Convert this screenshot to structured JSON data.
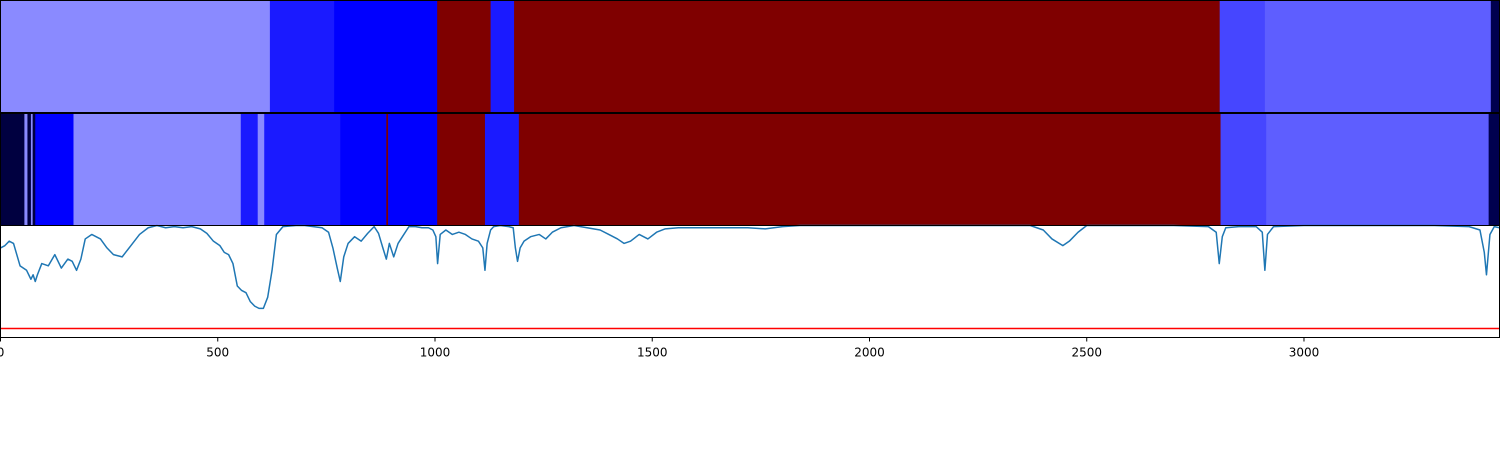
{
  "chart_data": [
    {
      "type": "heatmap",
      "name": "segmentation-a",
      "xlim": [
        0,
        3450
      ],
      "segments": [
        {
          "start": 0,
          "end": 620,
          "color": "#8a8aff"
        },
        {
          "start": 620,
          "end": 768,
          "color": "#1a1aff"
        },
        {
          "start": 768,
          "end": 1005,
          "color": "#0000ff"
        },
        {
          "start": 1005,
          "end": 1128,
          "color": "#7f0000"
        },
        {
          "start": 1128,
          "end": 1182,
          "color": "#1a1aff"
        },
        {
          "start": 1182,
          "end": 2806,
          "color": "#7f0000"
        },
        {
          "start": 2806,
          "end": 2910,
          "color": "#4646ff"
        },
        {
          "start": 2910,
          "end": 3430,
          "color": "#5e5eff"
        },
        {
          "start": 3430,
          "end": 3450,
          "color": "#00004f"
        }
      ]
    },
    {
      "type": "heatmap",
      "name": "segmentation-b",
      "xlim": [
        0,
        3450
      ],
      "segments": [
        {
          "start": 0,
          "end": 55,
          "color": "#000040"
        },
        {
          "start": 55,
          "end": 62,
          "color": "#8a8aff"
        },
        {
          "start": 62,
          "end": 70,
          "color": "#000040"
        },
        {
          "start": 70,
          "end": 74,
          "color": "#8a8aff"
        },
        {
          "start": 74,
          "end": 80,
          "color": "#000040"
        },
        {
          "start": 80,
          "end": 168,
          "color": "#0000ff"
        },
        {
          "start": 168,
          "end": 553,
          "color": "#8a8aff"
        },
        {
          "start": 553,
          "end": 592,
          "color": "#1a1aff"
        },
        {
          "start": 592,
          "end": 607,
          "color": "#8a8aff"
        },
        {
          "start": 607,
          "end": 782,
          "color": "#1a1aff"
        },
        {
          "start": 782,
          "end": 888,
          "color": "#0000ff"
        },
        {
          "start": 888,
          "end": 892,
          "color": "#7f0000"
        },
        {
          "start": 892,
          "end": 1005,
          "color": "#0000ff"
        },
        {
          "start": 1005,
          "end": 1115,
          "color": "#7f0000"
        },
        {
          "start": 1115,
          "end": 1193,
          "color": "#1a1aff"
        },
        {
          "start": 1193,
          "end": 2808,
          "color": "#7f0000"
        },
        {
          "start": 2808,
          "end": 2913,
          "color": "#4646ff"
        },
        {
          "start": 2913,
          "end": 3425,
          "color": "#5e5eff"
        },
        {
          "start": 3425,
          "end": 3450,
          "color": "#00004f"
        }
      ]
    },
    {
      "type": "line",
      "xlim": [
        0,
        3450
      ],
      "ylim": [
        0,
        1
      ],
      "x_ticks": [
        0,
        500,
        1000,
        1500,
        2000,
        2500,
        3000
      ],
      "x_tick_labels": [
        "0",
        "500",
        "1000",
        "1500",
        "2000",
        "2500",
        "3000"
      ],
      "threshold": {
        "value": 0.08,
        "color": "#ff0000"
      },
      "series": [
        {
          "color": "#1f77b4",
          "points": [
            [
              0,
              0.8
            ],
            [
              10,
              0.82
            ],
            [
              20,
              0.86
            ],
            [
              30,
              0.84
            ],
            [
              45,
              0.64
            ],
            [
              60,
              0.6
            ],
            [
              70,
              0.52
            ],
            [
              75,
              0.56
            ],
            [
              80,
              0.5
            ],
            [
              85,
              0.56
            ],
            [
              95,
              0.66
            ],
            [
              110,
              0.64
            ],
            [
              125,
              0.74
            ],
            [
              140,
              0.62
            ],
            [
              155,
              0.7
            ],
            [
              165,
              0.68
            ],
            [
              175,
              0.6
            ],
            [
              185,
              0.7
            ],
            [
              195,
              0.88
            ],
            [
              210,
              0.92
            ],
            [
              230,
              0.88
            ],
            [
              245,
              0.8
            ],
            [
              260,
              0.74
            ],
            [
              280,
              0.72
            ],
            [
              300,
              0.82
            ],
            [
              320,
              0.92
            ],
            [
              340,
              0.98
            ],
            [
              360,
              1.0
            ],
            [
              380,
              0.98
            ],
            [
              400,
              0.99
            ],
            [
              420,
              0.98
            ],
            [
              440,
              0.99
            ],
            [
              460,
              0.97
            ],
            [
              475,
              0.93
            ],
            [
              490,
              0.86
            ],
            [
              505,
              0.82
            ],
            [
              515,
              0.76
            ],
            [
              525,
              0.74
            ],
            [
              535,
              0.66
            ],
            [
              545,
              0.46
            ],
            [
              555,
              0.42
            ],
            [
              565,
              0.4
            ],
            [
              575,
              0.32
            ],
            [
              585,
              0.28
            ],
            [
              595,
              0.26
            ],
            [
              605,
              0.26
            ],
            [
              615,
              0.36
            ],
            [
              625,
              0.6
            ],
            [
              635,
              0.92
            ],
            [
              650,
              0.99
            ],
            [
              680,
              1.0
            ],
            [
              700,
              1.0
            ],
            [
              720,
              0.99
            ],
            [
              740,
              0.98
            ],
            [
              755,
              0.94
            ],
            [
              765,
              0.8
            ],
            [
              775,
              0.62
            ],
            [
              782,
              0.5
            ],
            [
              790,
              0.72
            ],
            [
              800,
              0.84
            ],
            [
              815,
              0.9
            ],
            [
              830,
              0.86
            ],
            [
              845,
              0.93
            ],
            [
              860,
              0.99
            ],
            [
              870,
              0.93
            ],
            [
              880,
              0.8
            ],
            [
              888,
              0.7
            ],
            [
              895,
              0.84
            ],
            [
              905,
              0.72
            ],
            [
              915,
              0.84
            ],
            [
              925,
              0.9
            ],
            [
              940,
              0.99
            ],
            [
              955,
              0.99
            ],
            [
              970,
              0.98
            ],
            [
              985,
              0.98
            ],
            [
              995,
              0.96
            ],
            [
              1002,
              0.9
            ],
            [
              1006,
              0.66
            ],
            [
              1012,
              0.92
            ],
            [
              1025,
              0.96
            ],
            [
              1040,
              0.92
            ],
            [
              1055,
              0.94
            ],
            [
              1070,
              0.92
            ],
            [
              1085,
              0.88
            ],
            [
              1100,
              0.86
            ],
            [
              1110,
              0.8
            ],
            [
              1115,
              0.6
            ],
            [
              1120,
              0.84
            ],
            [
              1128,
              0.96
            ],
            [
              1135,
              0.99
            ],
            [
              1150,
              1.0
            ],
            [
              1170,
              0.99
            ],
            [
              1180,
              0.98
            ],
            [
              1185,
              0.8
            ],
            [
              1190,
              0.68
            ],
            [
              1196,
              0.8
            ],
            [
              1205,
              0.86
            ],
            [
              1220,
              0.9
            ],
            [
              1240,
              0.92
            ],
            [
              1255,
              0.88
            ],
            [
              1270,
              0.94
            ],
            [
              1290,
              0.98
            ],
            [
              1320,
              1.0
            ],
            [
              1350,
              0.98
            ],
            [
              1380,
              0.96
            ],
            [
              1400,
              0.92
            ],
            [
              1420,
              0.88
            ],
            [
              1435,
              0.84
            ],
            [
              1450,
              0.86
            ],
            [
              1470,
              0.92
            ],
            [
              1490,
              0.88
            ],
            [
              1510,
              0.94
            ],
            [
              1530,
              0.97
            ],
            [
              1560,
              0.98
            ],
            [
              1600,
              0.98
            ],
            [
              1640,
              0.98
            ],
            [
              1680,
              0.98
            ],
            [
              1720,
              0.98
            ],
            [
              1760,
              0.97
            ],
            [
              1800,
              0.99
            ],
            [
              1840,
              1.0
            ],
            [
              1900,
              1.0
            ],
            [
              2000,
              1.0
            ],
            [
              2100,
              1.0
            ],
            [
              2200,
              1.0
            ],
            [
              2300,
              1.0
            ],
            [
              2370,
              1.0
            ],
            [
              2400,
              0.96
            ],
            [
              2420,
              0.88
            ],
            [
              2445,
              0.82
            ],
            [
              2460,
              0.86
            ],
            [
              2480,
              0.94
            ],
            [
              2500,
              1.0
            ],
            [
              2600,
              1.0
            ],
            [
              2700,
              1.0
            ],
            [
              2780,
              0.99
            ],
            [
              2798,
              0.94
            ],
            [
              2805,
              0.66
            ],
            [
              2812,
              0.9
            ],
            [
              2820,
              0.98
            ],
            [
              2850,
              0.99
            ],
            [
              2890,
              0.99
            ],
            [
              2904,
              0.94
            ],
            [
              2910,
              0.6
            ],
            [
              2916,
              0.92
            ],
            [
              2930,
              0.99
            ],
            [
              3000,
              1.0
            ],
            [
              3100,
              1.0
            ],
            [
              3200,
              1.0
            ],
            [
              3300,
              1.0
            ],
            [
              3380,
              0.99
            ],
            [
              3405,
              0.96
            ],
            [
              3415,
              0.76
            ],
            [
              3420,
              0.56
            ],
            [
              3428,
              0.92
            ],
            [
              3438,
              0.99
            ],
            [
              3450,
              0.98
            ]
          ]
        }
      ]
    }
  ]
}
